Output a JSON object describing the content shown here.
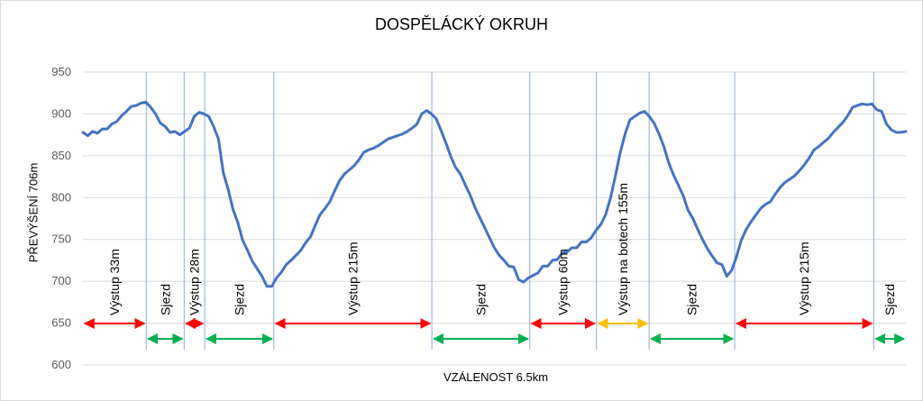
{
  "chart_data": {
    "type": "line",
    "title": "DOSPĚLÁCKÝ OKRUH",
    "xlabel": "VZÁLENOST 6.5km",
    "ylabel": "PŘEVÝŠENÍ 706m",
    "ylim": [
      600,
      950
    ],
    "yticks": [
      600,
      650,
      700,
      750,
      800,
      850,
      900,
      950
    ],
    "grid": true,
    "legend": "none",
    "colors": {
      "line": "#4472c4",
      "divider": "#8faadc",
      "grid": "#d9d9d9",
      "climb": "#ff0000",
      "descent": "#00b050",
      "push": "#ffc000"
    },
    "series": [
      {
        "values": [
          878,
          874,
          879,
          877,
          882,
          882,
          888,
          891,
          898,
          903,
          909,
          910,
          913,
          914,
          908,
          900,
          889,
          885,
          878,
          879,
          875,
          879,
          883,
          897,
          902,
          900,
          897,
          885,
          870,
          830,
          810,
          786,
          770,
          749,
          737,
          724,
          715,
          706,
          694,
          694,
          704,
          711,
          720,
          725,
          731,
          737,
          746,
          753,
          767,
          780,
          787,
          795,
          808,
          820,
          828,
          833,
          838,
          845,
          854,
          857,
          859,
          862,
          866,
          870,
          872,
          874,
          876,
          879,
          883,
          888,
          900,
          904,
          900,
          894,
          880,
          865,
          849,
          836,
          828,
          815,
          803,
          788,
          776,
          764,
          752,
          740,
          731,
          725,
          718,
          717,
          702,
          699,
          704,
          707,
          710,
          718,
          718,
          725,
          726,
          734,
          735,
          740,
          740,
          747,
          747,
          752,
          761,
          768,
          780,
          800,
          826,
          854,
          876,
          893,
          897,
          901,
          903,
          897,
          889,
          876,
          861,
          842,
          827,
          815,
          802,
          785,
          775,
          762,
          750,
          739,
          730,
          722,
          720,
          706,
          713,
          729,
          749,
          762,
          771,
          779,
          787,
          792,
          795,
          804,
          812,
          818,
          822,
          826,
          832,
          839,
          847,
          857,
          861,
          866,
          871,
          878,
          884,
          890,
          898,
          908,
          910,
          912,
          911,
          912,
          905,
          903,
          888,
          881,
          878,
          878,
          879
        ]
      }
    ],
    "sections": [
      {
        "label": "Výstup 33m",
        "kind": "climb",
        "x_start": 0.0,
        "x_end": 0.077
      },
      {
        "label": "Sjezd",
        "kind": "descent",
        "x_start": 0.077,
        "x_end": 0.123
      },
      {
        "label": "Výstup 28m",
        "kind": "climb",
        "x_start": 0.123,
        "x_end": 0.148
      },
      {
        "label": "Sjezd",
        "kind": "descent",
        "x_start": 0.148,
        "x_end": 0.232
      },
      {
        "label": "Výstup 215m",
        "kind": "climb",
        "x_start": 0.232,
        "x_end": 0.424
      },
      {
        "label": "Sjezd",
        "kind": "descent",
        "x_start": 0.424,
        "x_end": 0.543
      },
      {
        "label": "Výstup 60m",
        "kind": "climb",
        "x_start": 0.543,
        "x_end": 0.624
      },
      {
        "label": "Výstup na botech 155m",
        "kind": "push",
        "x_start": 0.624,
        "x_end": 0.688
      },
      {
        "label": "Sjezd",
        "kind": "descent",
        "x_start": 0.688,
        "x_end": 0.792
      },
      {
        "label": "Výstup 215m",
        "kind": "climb",
        "x_start": 0.792,
        "x_end": 0.961
      },
      {
        "label": "Sjezd",
        "kind": "descent",
        "x_start": 0.961,
        "x_end": 1.0
      }
    ]
  }
}
